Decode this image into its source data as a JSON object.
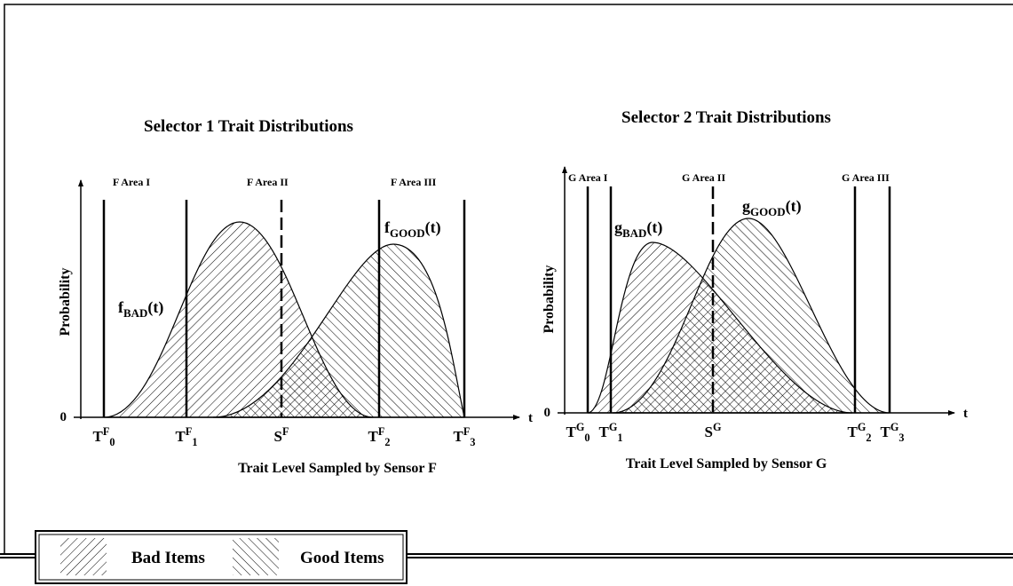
{
  "panels": [
    {
      "title": "Selector 1 Trait Distributions",
      "y_axis_label": "Probability",
      "origin_label": "0",
      "t_label": "t",
      "x_axis_label": "Trait Level Sampled by Sensor F",
      "area_labels": [
        "F Area I",
        "F Area II",
        "F Area III"
      ],
      "curve_labels": [
        {
          "base": "f",
          "sub": "BAD",
          "arg": "(t)"
        },
        {
          "base": "f",
          "sub": "GOOD",
          "arg": "(t)"
        }
      ],
      "marks": [
        {
          "base": "T",
          "sup": "F",
          "sub": "0"
        },
        {
          "base": "T",
          "sup": "F",
          "sub": "1"
        },
        {
          "base": "S",
          "sup": "F"
        },
        {
          "base": "T",
          "sup": "F",
          "sub": "2"
        },
        {
          "base": "T",
          "sup": "F",
          "sub": "3"
        }
      ]
    },
    {
      "title": "Selector 2 Trait Distributions",
      "y_axis_label": "Probability",
      "origin_label": "0",
      "t_label": "t",
      "x_axis_label": "Trait Level Sampled by Sensor G",
      "area_labels": [
        "G Area I",
        "G Area II",
        "G Area III"
      ],
      "curve_labels": [
        {
          "base": "g",
          "sub": "BAD",
          "arg": "(t)"
        },
        {
          "base": "g",
          "sub": "GOOD",
          "arg": "(t)"
        }
      ],
      "marks": [
        {
          "base": "T",
          "sup": "G",
          "sub": "0"
        },
        {
          "base": "T",
          "sup": "G",
          "sub": "1"
        },
        {
          "base": "S",
          "sup": "G"
        },
        {
          "base": "T",
          "sup": "G",
          "sub": "2"
        },
        {
          "base": "T",
          "sup": "G",
          "sub": "3"
        }
      ]
    }
  ],
  "legend": {
    "items": [
      "Bad Items",
      "Good Items"
    ]
  }
}
